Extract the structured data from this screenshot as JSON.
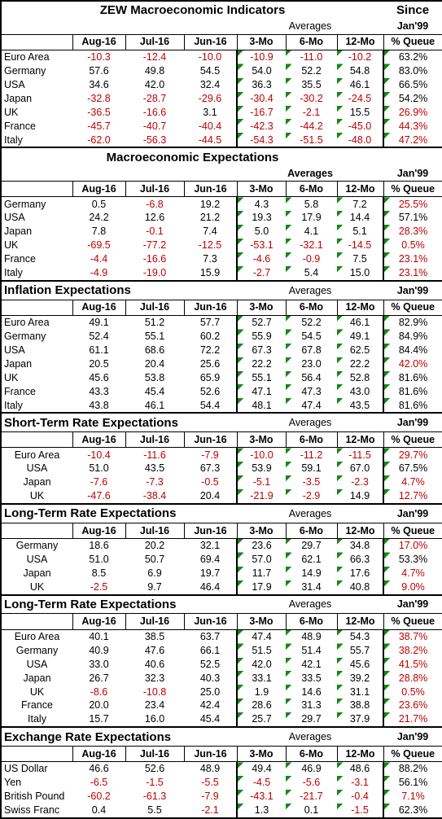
{
  "negative_color": "#c00000",
  "sections": [
    {
      "title": "ZEW Macroeconomic Indicators",
      "since": "Since",
      "averages": "Averages",
      "jan": "Jan'99",
      "columns": [
        "Aug-16",
        "Jul-16",
        "Jun-16",
        "3-Mo",
        "6-Mo",
        "12-Mo",
        "% Queue"
      ],
      "rows": [
        [
          "Euro Area",
          "-10.3",
          "-12.4",
          "-10.0",
          "-10.9",
          "-11.0",
          "-10.2",
          "63.2%"
        ],
        [
          "Germany",
          "57.6",
          "49.8",
          "54.5",
          "54.0",
          "52.2",
          "54.8",
          "83.0%"
        ],
        [
          "USA",
          "34.6",
          "42.0",
          "32.4",
          "36.3",
          "35.5",
          "46.1",
          "66.5%"
        ],
        [
          "Japan",
          "-32.8",
          "-28.7",
          "-29.6",
          "-30.4",
          "-30.2",
          "-24.5",
          "54.2%"
        ],
        [
          "UK",
          "-36.5",
          "-16.6",
          "3.1",
          "-16.7",
          "-2.1",
          "15.5",
          "26.9%"
        ],
        [
          "France",
          "-45.7",
          "-40.7",
          "-40.4",
          "-42.3",
          "-44.2",
          "-45.0",
          "44.3%"
        ],
        [
          "Italy",
          "-62.0",
          "-56.3",
          "-44.5",
          "-54.3",
          "-51.5",
          "-48.0",
          "47.2%"
        ]
      ]
    },
    {
      "title": "Macroeconomic Expectations",
      "averages": "Averages",
      "jan": "Jan'99",
      "columns": [
        "Aug-16",
        "Jul-16",
        "Jun-16",
        "3-Mo",
        "6-Mo",
        "12-Mo",
        "% Queue"
      ],
      "rows": [
        [
          "Germany",
          "0.5",
          "-6.8",
          "19.2",
          "4.3",
          "5.8",
          "7.2",
          "25.5%"
        ],
        [
          "USA",
          "24.2",
          "12.6",
          "21.2",
          "19.3",
          "17.9",
          "14.4",
          "57.1%"
        ],
        [
          "Japan",
          "7.8",
          "-0.1",
          "7.4",
          "5.0",
          "4.1",
          "5.1",
          "28.3%"
        ],
        [
          "UK",
          "-69.5",
          "-77.2",
          "-12.5",
          "-53.1",
          "-32.1",
          "-14.5",
          "0.5%"
        ],
        [
          "France",
          "-4.4",
          "-16.6",
          "7.3",
          "-4.6",
          "-0.9",
          "7.5",
          "23.1%"
        ],
        [
          "Italy",
          "-4.9",
          "-19.0",
          "15.9",
          "-2.7",
          "5.4",
          "15.0",
          "23.1%"
        ]
      ]
    },
    {
      "title": "Inflation Expectations",
      "averages": "Averages",
      "jan": "Jan'99",
      "columns": [
        "Aug-16",
        "Jul-16",
        "Jun-16",
        "3-Mo",
        "6-Mo",
        "12-Mo",
        "% Queue"
      ],
      "rows": [
        [
          "Euro Area",
          "49.1",
          "51.2",
          "57.7",
          "52.7",
          "52.2",
          "46.1",
          "82.9%"
        ],
        [
          "Germany",
          "52.4",
          "55.1",
          "60.2",
          "55.9",
          "54.5",
          "49.1",
          "84.9%"
        ],
        [
          "USA",
          "61.1",
          "68.6",
          "72.2",
          "67.3",
          "67.8",
          "62.5",
          "84.4%"
        ],
        [
          "Japan",
          "20.5",
          "20.4",
          "25.6",
          "22.2",
          "23.0",
          "22.2",
          "42.0%"
        ],
        [
          "UK",
          "45.6",
          "53.8",
          "65.9",
          "55.1",
          "56.4",
          "52.8",
          "81.6%"
        ],
        [
          "France",
          "43.3",
          "45.4",
          "52.6",
          "47.1",
          "47.3",
          "43.0",
          "81.6%"
        ],
        [
          "Italy",
          "43.8",
          "46.1",
          "54.4",
          "48.1",
          "47.4",
          "43.5",
          "81.6%"
        ]
      ]
    },
    {
      "title": "Short-Term Rate Expectations",
      "averages": "Averages",
      "jan": "Jan'99",
      "columns": [
        "Aug-16",
        "Jul-16",
        "Jun-16",
        "3-Mo",
        "6-Mo",
        "12-Mo",
        "% Queue"
      ],
      "rows": [
        [
          "Euro Area",
          "-10.4",
          "-11.6",
          "-7.9",
          "-10.0",
          "-11.2",
          "-11.5",
          "29.7%"
        ],
        [
          "USA",
          "51.0",
          "43.5",
          "67.3",
          "53.9",
          "59.1",
          "67.0",
          "67.5%"
        ],
        [
          "Japan",
          "-7.6",
          "-7.3",
          "-0.5",
          "-5.1",
          "-3.5",
          "-2.3",
          "4.7%"
        ],
        [
          "UK",
          "-47.6",
          "-38.4",
          "20.4",
          "-21.9",
          "-2.9",
          "14.9",
          "12.7%"
        ]
      ]
    },
    {
      "title": "Long-Term Rate Expectations",
      "averages": "Averages",
      "jan": "Jan'99",
      "columns": [
        "Aug-16",
        "Jul-16",
        "Jun-16",
        "3-Mo",
        "6-Mo",
        "12-Mo",
        "% Queue"
      ],
      "rows": [
        [
          "Germany",
          "18.6",
          "20.2",
          "32.1",
          "23.6",
          "29.7",
          "34.8",
          "17.0%"
        ],
        [
          "USA",
          "51.0",
          "50.7",
          "69.4",
          "57.0",
          "62.1",
          "66.3",
          "53.3%"
        ],
        [
          "Japan",
          "8.5",
          "6.9",
          "19.7",
          "11.7",
          "14.9",
          "17.6",
          "4.7%"
        ],
        [
          "UK",
          "-2.5",
          "9.7",
          "46.4",
          "17.9",
          "31.4",
          "40.8",
          "9.0%"
        ]
      ]
    },
    {
      "title": "Long-Term Rate Expectations",
      "averages": "Averages",
      "jan": "Jan'99",
      "columns": [
        "Aug-16",
        "Jul-16",
        "Jun-16",
        "3-Mo",
        "6-Mo",
        "12-Mo",
        "% Queue"
      ],
      "rows": [
        [
          "Euro Area",
          "40.1",
          "38.5",
          "63.7",
          "47.4",
          "48.9",
          "54.3",
          "38.7%"
        ],
        [
          "Germany",
          "40.9",
          "47.6",
          "66.1",
          "51.5",
          "51.4",
          "55.7",
          "38.2%"
        ],
        [
          "USA",
          "33.0",
          "40.6",
          "52.5",
          "42.0",
          "42.1",
          "45.6",
          "41.5%"
        ],
        [
          "Japan",
          "26.7",
          "32.3",
          "40.3",
          "33.1",
          "33.5",
          "39.2",
          "28.8%"
        ],
        [
          "UK",
          "-8.6",
          "-10.8",
          "25.0",
          "1.9",
          "14.6",
          "31.1",
          "0.5%"
        ],
        [
          "France",
          "20.0",
          "23.4",
          "42.4",
          "28.6",
          "31.3",
          "38.8",
          "23.6%"
        ],
        [
          "Italy",
          "15.7",
          "16.0",
          "45.4",
          "25.7",
          "29.7",
          "37.9",
          "21.7%"
        ]
      ]
    },
    {
      "title": "Exchange Rate Expectations",
      "averages": "Averages",
      "jan": "Jan'99",
      "columns": [
        "Aug-16",
        "Jul-16",
        "Jun-16",
        "3-Mo",
        "6-Mo",
        "12-Mo",
        "% Queue"
      ],
      "rows": [
        [
          "US Dollar",
          "46.6",
          "52.6",
          "48.9",
          "49.4",
          "46.9",
          "48.6",
          "88.2%"
        ],
        [
          "Yen",
          "-6.5",
          "-1.5",
          "-5.5",
          "-4.5",
          "-5.6",
          "-3.1",
          "56.1%"
        ],
        [
          "British Pound",
          "-60.2",
          "-61.3",
          "-7.9",
          "-43.1",
          "-21.7",
          "-0.4",
          "7.1%"
        ],
        [
          "Swiss Franc",
          "0.4",
          "5.5",
          "-2.1",
          "1.3",
          "0.1",
          "-1.5",
          "62.3%"
        ]
      ]
    }
  ]
}
